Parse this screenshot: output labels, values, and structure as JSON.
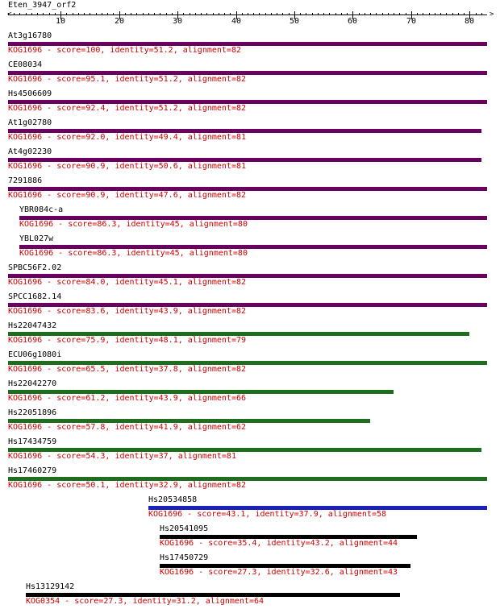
{
  "query": {
    "name": "Eten_3947_orf2"
  },
  "axis": {
    "min": 1,
    "max": 82,
    "ticks": [
      10,
      20,
      30,
      40,
      50,
      60,
      70,
      80
    ]
  },
  "colors": {
    "purple": "#6a005f",
    "green": "#1f6e1f",
    "blue": "#1a22bb",
    "black": "#000000",
    "info": "#cc0000"
  },
  "hits": [
    {
      "name": "At3g16780",
      "info": "KOG1696 - score=100, identity=51.2, alignment=82",
      "start": 1,
      "end": 82,
      "color": "purple"
    },
    {
      "name": "CE08034",
      "info": "KOG1696 - score=95.1, identity=51.2, alignment=82",
      "start": 1,
      "end": 82,
      "color": "purple"
    },
    {
      "name": "Hs4506609",
      "info": "KOG1696 - score=92.4, identity=51.2, alignment=82",
      "start": 1,
      "end": 82,
      "color": "purple"
    },
    {
      "name": "At1g02780",
      "info": "KOG1696 - score=92.0, identity=49.4, alignment=81",
      "start": 1,
      "end": 81,
      "color": "purple"
    },
    {
      "name": "At4g02230",
      "info": "KOG1696 - score=90.9, identity=50.6, alignment=81",
      "start": 1,
      "end": 81,
      "color": "purple"
    },
    {
      "name": "7291886",
      "info": "KOG1696 - score=90.9, identity=47.6, alignment=82",
      "start": 1,
      "end": 82,
      "color": "purple"
    },
    {
      "name": "YBR084c-a",
      "info": "KOG1696 - score=86.3, identity=45, alignment=80",
      "start": 3,
      "end": 82,
      "color": "purple"
    },
    {
      "name": "YBL027w",
      "info": "KOG1696 - score=86.3, identity=45, alignment=80",
      "start": 3,
      "end": 82,
      "color": "purple"
    },
    {
      "name": "SPBC56F2.02",
      "info": "KOG1696 - score=84.0, identity=45.1, alignment=82",
      "start": 1,
      "end": 82,
      "color": "purple"
    },
    {
      "name": "SPCC1682.14",
      "info": "KOG1696 - score=83.6, identity=43.9, alignment=82",
      "start": 1,
      "end": 82,
      "color": "purple"
    },
    {
      "name": "Hs22047432",
      "info": "KOG1696 - score=75.9, identity=48.1, alignment=79",
      "start": 1,
      "end": 79,
      "color": "green"
    },
    {
      "name": "ECU06g1080i",
      "info": "KOG1696 - score=65.5, identity=37.8, alignment=82",
      "start": 1,
      "end": 82,
      "color": "green"
    },
    {
      "name": "Hs22042270",
      "info": "KOG1696 - score=61.2, identity=43.9, alignment=66",
      "start": 1,
      "end": 66,
      "color": "green"
    },
    {
      "name": "Hs22051896",
      "info": "KOG1696 - score=57.8, identity=41.9, alignment=62",
      "start": 1,
      "end": 62,
      "color": "green"
    },
    {
      "name": "Hs17434759",
      "info": "KOG1696 - score=54.3, identity=37, alignment=81",
      "start": 1,
      "end": 81,
      "color": "green"
    },
    {
      "name": "Hs17460279",
      "info": "KOG1696 - score=50.1, identity=32.9, alignment=82",
      "start": 1,
      "end": 82,
      "color": "green"
    },
    {
      "name": "Hs20534858",
      "info": "KOG1696 - score=43.1, identity=37.9, alignment=58",
      "start": 25,
      "end": 82,
      "color": "blue"
    },
    {
      "name": "Hs20541095",
      "info": "KOG1696 - score=35.4, identity=43.2, alignment=44",
      "start": 27,
      "end": 70,
      "color": "black"
    },
    {
      "name": "Hs17450729",
      "info": "KOG1696 - score=27.3, identity=32.6, alignment=43",
      "start": 27,
      "end": 69,
      "color": "black"
    },
    {
      "name": "Hs13129142",
      "info": "KOG0354 - score=27.3, identity=31.2, alignment=64",
      "start": 4,
      "end": 67,
      "color": "black"
    }
  ]
}
